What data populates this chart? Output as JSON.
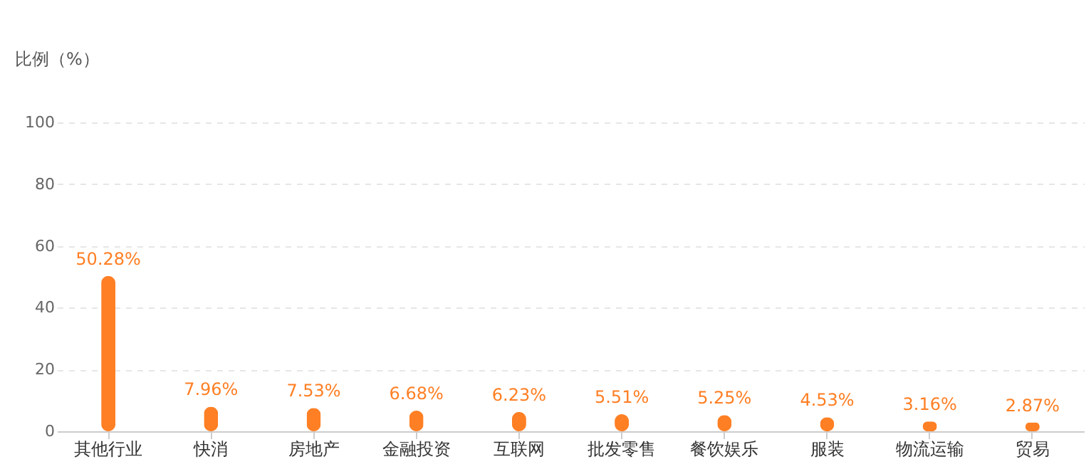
{
  "chart_data": {
    "type": "bar",
    "ylabel": "比例（%）",
    "categories": [
      "其他行业",
      "快消",
      "房地产",
      "金融投资",
      "互联网",
      "批发零售",
      "餐饮娱乐",
      "服装",
      "物流运输",
      "贸易"
    ],
    "values": [
      50.28,
      7.96,
      7.53,
      6.68,
      6.23,
      5.51,
      5.25,
      4.53,
      3.16,
      2.87
    ],
    "value_labels": [
      "50.28%",
      "7.96%",
      "7.53%",
      "6.68%",
      "6.23%",
      "5.51%",
      "5.25%",
      "4.53%",
      "3.16%",
      "2.87%"
    ],
    "color": "#ff7f24",
    "ylim": [
      0,
      100
    ],
    "yticks": [
      0,
      20,
      40,
      60,
      80,
      100
    ],
    "grid": "y"
  }
}
